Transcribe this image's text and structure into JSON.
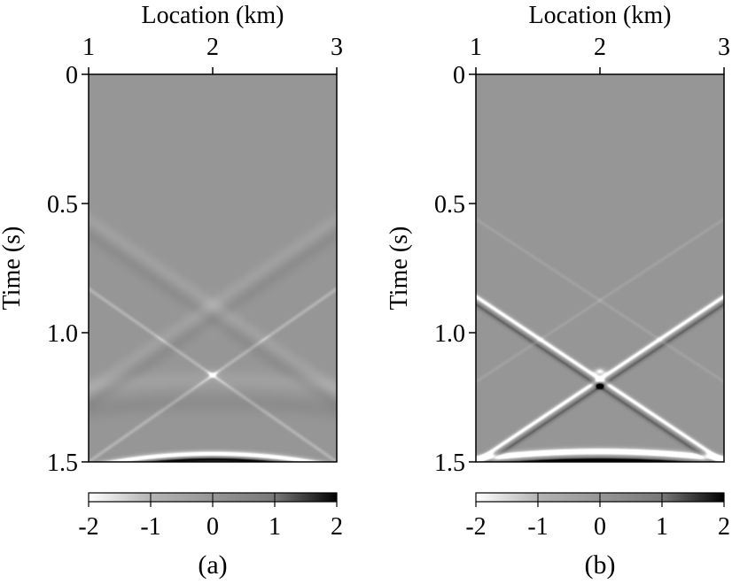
{
  "chart_data": [
    {
      "type": "heatmap",
      "panel_label": "(a)",
      "xlabel": "Location (km)",
      "ylabel": "Time (s)",
      "xlim": [
        1,
        3
      ],
      "ylim": [
        0,
        1.5
      ],
      "x_ticks": [
        "1",
        "2",
        "3"
      ],
      "y_ticks": [
        "0",
        "0.5",
        "1.0",
        "1.5"
      ],
      "colorbar": {
        "range": [
          -2,
          2
        ],
        "ticks": [
          "-2",
          "-1",
          "0",
          "1",
          "2"
        ]
      },
      "gradient": [
        [
          0,
          "#ffffff"
        ],
        [
          0.25,
          "#b4b4b4"
        ],
        [
          0.5,
          "#969696"
        ],
        [
          0.75,
          "#787878"
        ],
        [
          1,
          "#000000"
        ]
      ],
      "features": [
        {
          "kind": "hyperbola",
          "x0": 2,
          "t0": 1.47,
          "t_edge": 1.52,
          "amplitude": -2.5,
          "sigma": 0.013
        },
        {
          "kind": "hyperbola",
          "x0": 2,
          "t0": 1.49,
          "t_edge": 1.54,
          "amplitude": 2.2,
          "sigma": 0.012
        },
        {
          "kind": "line",
          "x0": 1,
          "t0": 0.83,
          "x1": 3,
          "t1": 1.5,
          "amplitude": -1.0,
          "sigma": 0.009
        },
        {
          "kind": "line",
          "x0": 3,
          "t0": 0.83,
          "x1": 1,
          "t1": 1.5,
          "amplitude": -1.0,
          "sigma": 0.009
        },
        {
          "kind": "line",
          "x0": 1,
          "t0": 0.56,
          "x1": 3,
          "t1": 1.22,
          "amplitude": -0.35,
          "sigma": 0.03
        },
        {
          "kind": "line",
          "x0": 3,
          "t0": 0.56,
          "x1": 1,
          "t1": 1.22,
          "amplitude": -0.35,
          "sigma": 0.03
        },
        {
          "kind": "line",
          "x0": 1,
          "t0": 0.62,
          "x1": 3,
          "t1": 1.28,
          "amplitude": 0.3,
          "sigma": 0.03
        },
        {
          "kind": "line",
          "x0": 3,
          "t0": 0.62,
          "x1": 1,
          "t1": 1.28,
          "amplitude": 0.3,
          "sigma": 0.03
        },
        {
          "kind": "hyperbola",
          "x0": 2,
          "t0": 1.18,
          "t_edge": 1.21,
          "amplitude": -0.35,
          "sigma": 0.035
        },
        {
          "kind": "hyperbola",
          "x0": 2,
          "t0": 1.27,
          "t_edge": 1.3,
          "amplitude": 0.3,
          "sigma": 0.035
        },
        {
          "kind": "blob",
          "x0": 2,
          "t0": 0.93,
          "sx": 0.15,
          "st": 0.06,
          "amplitude": -0.25
        },
        {
          "kind": "blob",
          "x0": 2,
          "t0": 1.16,
          "sx": 0.05,
          "st": 0.015,
          "amplitude": -0.8
        }
      ]
    },
    {
      "type": "heatmap",
      "panel_label": "(b)",
      "xlabel": "Location (km)",
      "ylabel": "Time (s)",
      "xlim": [
        1,
        3
      ],
      "ylim": [
        0,
        1.5
      ],
      "x_ticks": [
        "1",
        "2",
        "3"
      ],
      "y_ticks": [
        "0",
        "0.5",
        "1.0",
        "1.5"
      ],
      "colorbar": {
        "range": [
          -2,
          2
        ],
        "ticks": [
          "-2",
          "-1",
          "0",
          "1",
          "2"
        ]
      },
      "gradient": [
        [
          0,
          "#ffffff"
        ],
        [
          0.25,
          "#b4b4b4"
        ],
        [
          0.5,
          "#969696"
        ],
        [
          0.75,
          "#787878"
        ],
        [
          1,
          "#000000"
        ]
      ],
      "features": [
        {
          "kind": "hyperbola",
          "x0": 2,
          "t0": 1.46,
          "t_edge": 1.49,
          "amplitude": -3.0,
          "sigma": 0.014
        },
        {
          "kind": "hyperbola",
          "x0": 2,
          "t0": 1.5,
          "t_edge": 1.525,
          "amplitude": 3.2,
          "sigma": 0.016
        },
        {
          "kind": "line",
          "x0": 1,
          "t0": 0.86,
          "x1": 3,
          "t1": 1.5,
          "amplitude": -2.2,
          "sigma": 0.012
        },
        {
          "kind": "line",
          "x0": 3,
          "t0": 0.86,
          "x1": 1,
          "t1": 1.5,
          "amplitude": -2.2,
          "sigma": 0.012
        },
        {
          "kind": "line",
          "x0": 1,
          "t0": 0.89,
          "x1": 3,
          "t1": 1.53,
          "amplitude": 1.2,
          "sigma": 0.012
        },
        {
          "kind": "line",
          "x0": 3,
          "t0": 0.89,
          "x1": 1,
          "t1": 1.53,
          "amplitude": 1.2,
          "sigma": 0.012
        },
        {
          "kind": "line",
          "x0": 1,
          "t0": 0.56,
          "x1": 3,
          "t1": 1.19,
          "amplitude": -0.4,
          "sigma": 0.008
        },
        {
          "kind": "line",
          "x0": 3,
          "t0": 0.56,
          "x1": 1,
          "t1": 1.19,
          "amplitude": -0.4,
          "sigma": 0.008
        },
        {
          "kind": "blob",
          "x0": 2,
          "t0": 1.15,
          "sx": 0.045,
          "st": 0.013,
          "amplitude": -2.0
        },
        {
          "kind": "blob",
          "x0": 2,
          "t0": 1.2,
          "sx": 0.04,
          "st": 0.012,
          "amplitude": 1.5
        }
      ]
    }
  ]
}
